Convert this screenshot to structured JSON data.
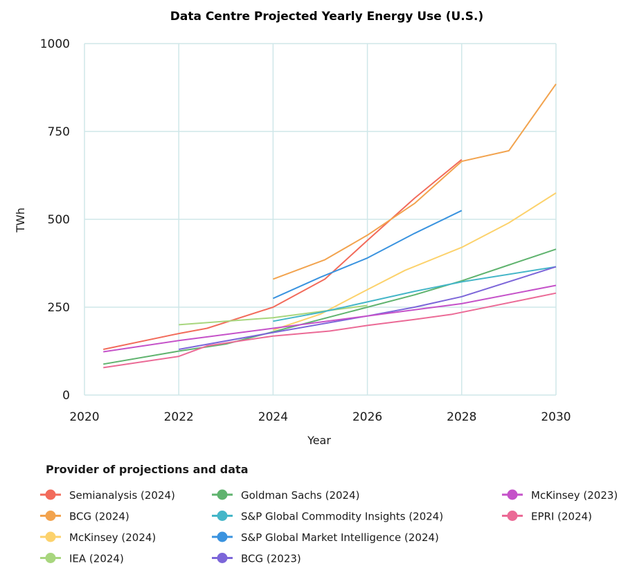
{
  "chart_data": {
    "type": "line",
    "title": "Data Centre Projected Yearly Energy Use (U.S.)",
    "xlabel": "Year",
    "ylabel": "TWh",
    "xlim": [
      2020,
      2030
    ],
    "ylim": [
      0,
      1000
    ],
    "x_ticks": [
      "2020",
      "2022",
      "2024",
      "2026",
      "2028",
      "2030"
    ],
    "y_ticks": [
      "0",
      "250",
      "500",
      "750",
      "1000"
    ],
    "grid": true,
    "legend": {
      "title": "Provider of projections and data",
      "placement": "bottom"
    },
    "series": [
      {
        "name": "Semianalysis (2024)",
        "color": "#F26B5B",
        "points": [
          [
            2020.4,
            130
          ],
          [
            2022,
            175
          ],
          [
            2022.6,
            190
          ],
          [
            2024,
            250
          ],
          [
            2025.1,
            330
          ],
          [
            2026,
            440
          ],
          [
            2027,
            560
          ],
          [
            2028,
            670
          ]
        ]
      },
      {
        "name": "BCG (2024)",
        "color": "#F2A34E",
        "points": [
          [
            2024,
            330
          ],
          [
            2025.1,
            385
          ],
          [
            2026,
            455
          ],
          [
            2027,
            545
          ],
          [
            2028,
            665
          ],
          [
            2029,
            695
          ],
          [
            2030,
            885
          ]
        ]
      },
      {
        "name": "McKinsey (2024)",
        "color": "#FCD26C",
        "points": [
          [
            2024,
            185
          ],
          [
            2025,
            230
          ],
          [
            2026,
            300
          ],
          [
            2026.8,
            355
          ],
          [
            2028,
            420
          ],
          [
            2029,
            490
          ],
          [
            2030,
            575
          ]
        ]
      },
      {
        "name": "IEA (2024)",
        "color": "#A8D67E",
        "points": [
          [
            2022,
            200
          ],
          [
            2024,
            220
          ],
          [
            2026,
            255
          ]
        ]
      },
      {
        "name": "Goldman Sachs (2024)",
        "color": "#5FB36E",
        "points": [
          [
            2020.4,
            88
          ],
          [
            2022,
            125
          ],
          [
            2023,
            145
          ],
          [
            2024,
            180
          ],
          [
            2025,
            215
          ],
          [
            2026,
            250
          ],
          [
            2027,
            285
          ],
          [
            2028,
            325
          ],
          [
            2029,
            370
          ],
          [
            2030,
            415
          ]
        ]
      },
      {
        "name": "S&P Global Commodity Insights (2024)",
        "color": "#45B6C8",
        "points": [
          [
            2024,
            210
          ],
          [
            2025,
            235
          ],
          [
            2026,
            265
          ],
          [
            2027,
            295
          ],
          [
            2028,
            322
          ],
          [
            2030,
            365
          ]
        ]
      },
      {
        "name": "S&P Global Market Intelligence (2024)",
        "color": "#3A93DF",
        "points": [
          [
            2024,
            275
          ],
          [
            2025,
            335
          ],
          [
            2026,
            390
          ],
          [
            2027,
            460
          ],
          [
            2028,
            525
          ]
        ]
      },
      {
        "name": "BCG (2023)",
        "color": "#7C66D9",
        "points": [
          [
            2022,
            130
          ],
          [
            2024,
            178
          ],
          [
            2026,
            225
          ],
          [
            2027,
            250
          ],
          [
            2028,
            280
          ],
          [
            2030,
            365
          ]
        ]
      },
      {
        "name": "McKinsey (2023)",
        "color": "#C552C9",
        "points": [
          [
            2020.4,
            123
          ],
          [
            2022,
            155
          ],
          [
            2024,
            190
          ],
          [
            2026,
            225
          ],
          [
            2028,
            260
          ],
          [
            2030,
            312
          ]
        ]
      },
      {
        "name": "EPRI (2024)",
        "color": "#EB6A96",
        "points": [
          [
            2020.4,
            78
          ],
          [
            2022,
            110
          ],
          [
            2022.6,
            140
          ],
          [
            2024,
            168
          ],
          [
            2025.2,
            182
          ],
          [
            2026,
            198
          ],
          [
            2027,
            215
          ],
          [
            2027.8,
            230
          ],
          [
            2030,
            290
          ]
        ]
      }
    ]
  }
}
